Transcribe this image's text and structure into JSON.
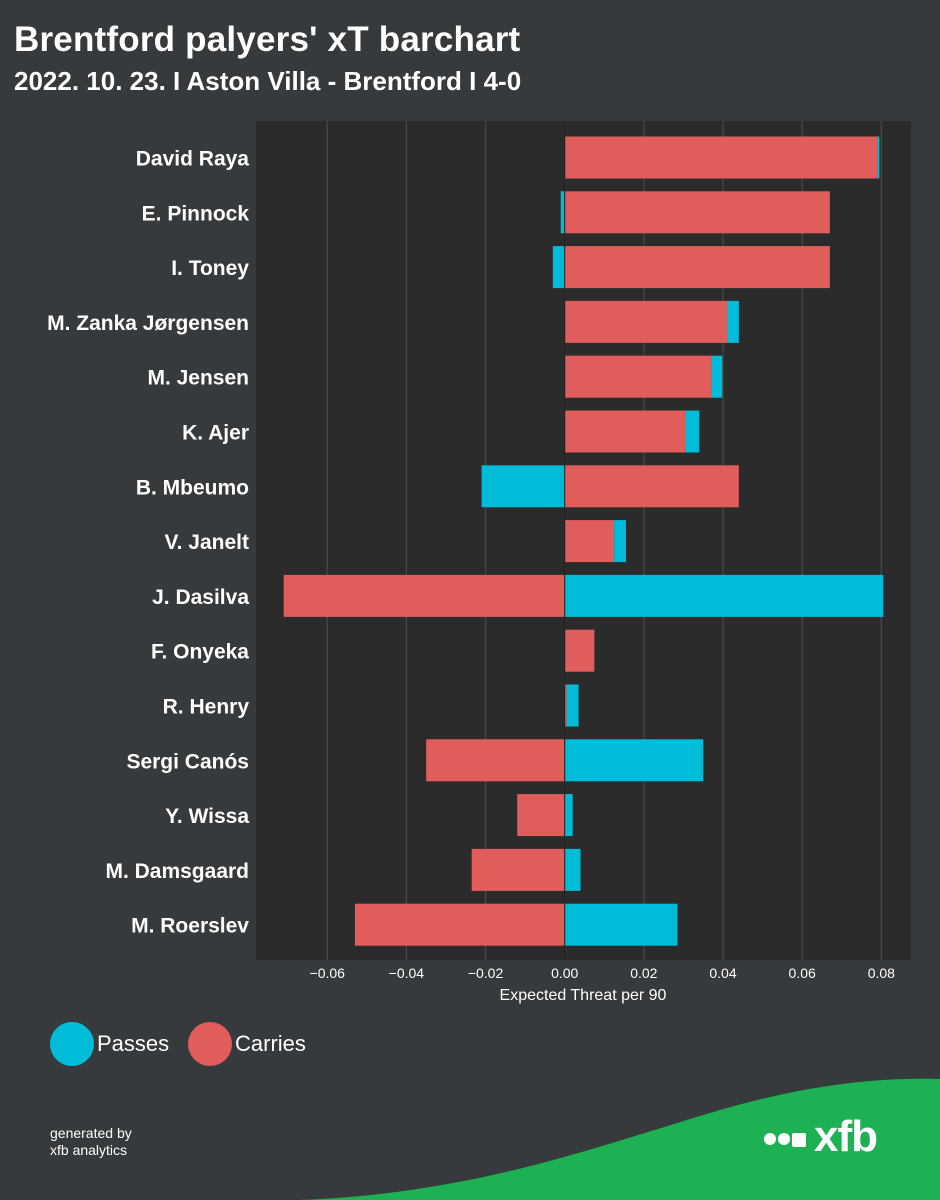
{
  "header": {
    "title": "Brentford palyers' xT barchart",
    "subtitle": "2022. 10. 23. I Aston Villa - Brentford I 4-0"
  },
  "legend": {
    "passes_label": "Passes",
    "carries_label": "Carries"
  },
  "footer": {
    "credit_line1": "generated by",
    "credit_line2": "xfb analytics",
    "brand": "xfb"
  },
  "colors": {
    "passes": "#00bcd8",
    "carries": "#e05d5b",
    "plot_bg": "#2b2b2b",
    "page_bg": "#363a3c",
    "grid": "#474747",
    "brand_green": "#1db153"
  },
  "chart_data": {
    "type": "bar",
    "orientation": "horizontal",
    "stacked": true,
    "xlabel": "Expected Threat per 90",
    "xlim": [
      -0.078,
      0.0875
    ],
    "xticks": [
      -0.06,
      -0.04,
      -0.02,
      0.0,
      0.02,
      0.04,
      0.06,
      0.08
    ],
    "xtick_labels": [
      "−0.06",
      "−0.04",
      "−0.02",
      "0.00",
      "0.02",
      "0.04",
      "0.06",
      "0.08"
    ],
    "grid": "vertical",
    "legend_position": "bottom-left",
    "categories": [
      "David Raya",
      "E. Pinnock",
      "I. Toney",
      "M. Zanka Jørgensen",
      "M. Jensen",
      "K. Ajer",
      "B. Mbeumo",
      "V. Janelt",
      "J. Dasilva",
      "F. Onyeka",
      "R. Henry",
      "Sergi Canós",
      "Y. Wissa",
      "M. Damsgaard",
      "M. Roerslev"
    ],
    "series": [
      {
        "name": "Carries",
        "values": [
          0.079,
          0.067,
          0.067,
          0.041,
          0.037,
          0.0305,
          0.044,
          0.0125,
          -0.071,
          0.0075,
          0.0005,
          -0.035,
          -0.012,
          -0.0235,
          -0.053
        ]
      },
      {
        "name": "Passes",
        "values": [
          0.0005,
          -0.001,
          -0.003,
          0.003,
          0.0028,
          0.0035,
          -0.021,
          0.003,
          0.0805,
          0.0,
          0.003,
          0.035,
          0.002,
          0.004,
          0.0285
        ]
      }
    ]
  }
}
